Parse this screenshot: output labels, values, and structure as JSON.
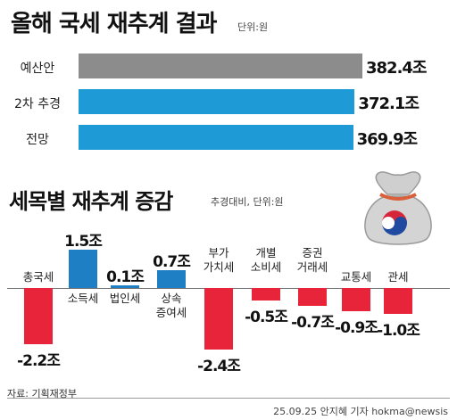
{
  "header": {
    "title": "올해 국세 재추계 결과",
    "unit": "단위:원"
  },
  "section2": {
    "title": "세목별 재추계 증감",
    "unit": "추경대비, 단위:원"
  },
  "chart_data": [
    {
      "type": "bar",
      "orientation": "horizontal",
      "title": "올해 국세 재추계 결과",
      "unit_label": "단위:원",
      "categories": [
        "예산안",
        "2차 추경",
        "전망"
      ],
      "values": [
        382.4,
        372.1,
        369.9
      ],
      "value_labels": [
        "382.4조",
        "372.1조",
        "369.9조"
      ],
      "colors": [
        "#8c8c8c",
        "#1e9ad6",
        "#1e9ad6"
      ]
    },
    {
      "type": "bar",
      "orientation": "vertical",
      "title": "세목별 재추계 증감",
      "unit_label": "추경대비, 단위:원",
      "categories": [
        "총국세",
        "소득세",
        "법인세",
        "상속\n증여세",
        "부가\n가치세",
        "개별\n소비세",
        "증권\n거래세",
        "교통세",
        "관세"
      ],
      "values": [
        -2.2,
        1.5,
        0.1,
        0.7,
        -2.4,
        -0.5,
        -0.7,
        -0.9,
        -1.0
      ],
      "value_labels": [
        "-2.2조",
        "1.5조",
        "0.1조",
        "0.7조",
        "-2.4조",
        "-0.5조",
        "-0.7조",
        "-0.9조",
        "-1.0조"
      ],
      "positive_color": "#1e7fc4",
      "negative_color": "#e8243a"
    }
  ],
  "footer": {
    "source": "자료: 기획재정부",
    "credit": "25.09.25 안지혜 기자 hokma@newsis"
  },
  "icons": {
    "money_bag": "money-bag-icon"
  }
}
